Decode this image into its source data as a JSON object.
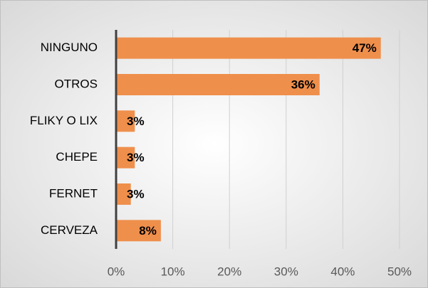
{
  "chart_data": {
    "type": "bar",
    "orientation": "horizontal",
    "categories": [
      "NINGUNO",
      "OTROS",
      "FLIKY O LIX",
      "CHEPE",
      "FERNET",
      "CERVEZA"
    ],
    "values": [
      46.7,
      35.9,
      3.3,
      3.3,
      2.6,
      7.9
    ],
    "value_labels": [
      "47%",
      "36%",
      "3%",
      "3%",
      "3%",
      "8%"
    ],
    "color": "#ef8f4c",
    "xlim": [
      0,
      50
    ],
    "xticks": [
      {
        "value": 0,
        "label": "0%"
      },
      {
        "value": 10,
        "label": "10%"
      },
      {
        "value": 20,
        "label": "20%"
      },
      {
        "value": 30,
        "label": "30%"
      },
      {
        "value": 40,
        "label": "40%"
      },
      {
        "value": 50,
        "label": "50%"
      }
    ],
    "grid": true
  }
}
